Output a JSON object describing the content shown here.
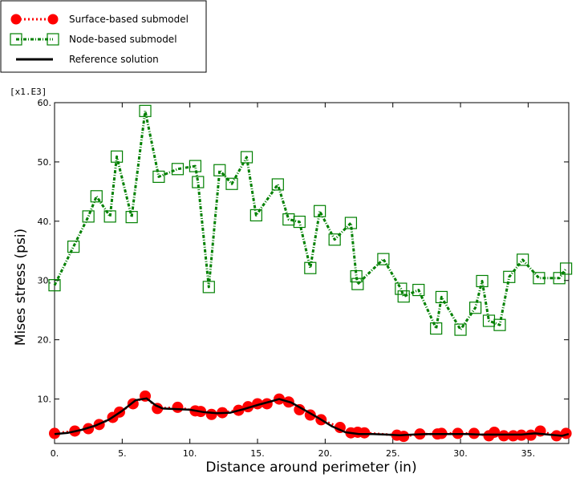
{
  "chart_data": {
    "type": "line",
    "xlabel": "Distance around perimeter (in)",
    "ylabel": "Mises stress (psi)",
    "y_multiplier": "[x1.E3]",
    "xlim": [
      0,
      38
    ],
    "ylim": [
      2.5,
      60
    ],
    "x_ticks": [
      0,
      5,
      10,
      15,
      20,
      25,
      30,
      35
    ],
    "x_tick_labels": [
      "0.",
      "5.",
      "10.",
      "15.",
      "20.",
      "25.",
      "30.",
      "35."
    ],
    "y_ticks": [
      10,
      20,
      30,
      40,
      50,
      60
    ],
    "y_tick_labels": [
      "10.",
      "20.",
      "30.",
      "40.",
      "50.",
      "60."
    ],
    "legend_position": "top-left",
    "grid": false,
    "series": [
      {
        "name": "Surface-based submodel",
        "color": "#ff0000",
        "marker": "circle",
        "line_style": "dotted",
        "x": [
          0.0,
          1.5,
          2.5,
          3.3,
          4.3,
          4.8,
          5.8,
          6.7,
          7.6,
          9.1,
          10.4,
          10.8,
          11.6,
          12.4,
          13.6,
          14.3,
          15.0,
          15.7,
          16.6,
          17.3,
          18.1,
          18.9,
          19.7,
          21.1,
          21.9,
          22.4,
          22.9,
          25.3,
          25.8,
          27.0,
          28.3,
          28.6,
          29.8,
          31.0,
          32.1,
          32.5,
          33.2,
          33.9,
          34.5,
          35.2,
          35.9,
          37.1,
          37.8
        ],
        "y": [
          4.2,
          4.6,
          5.0,
          5.7,
          6.9,
          7.8,
          9.2,
          10.5,
          8.4,
          8.6,
          8.0,
          7.9,
          7.4,
          7.7,
          8.1,
          8.7,
          9.2,
          9.2,
          10.0,
          9.5,
          8.2,
          7.3,
          6.5,
          5.2,
          4.3,
          4.4,
          4.3,
          3.9,
          3.7,
          4.1,
          4.1,
          4.2,
          4.2,
          4.2,
          3.8,
          4.4,
          3.8,
          3.8,
          3.9,
          3.9,
          4.6,
          3.8,
          4.2
        ]
      },
      {
        "name": "Node-based submodel",
        "color": "#008000",
        "marker": "square",
        "line_style": "dash-dot",
        "x": [
          0.0,
          1.4,
          2.5,
          3.1,
          4.1,
          4.6,
          5.7,
          6.7,
          7.7,
          9.1,
          10.4,
          10.6,
          11.4,
          12.2,
          13.1,
          14.2,
          14.9,
          16.5,
          17.3,
          18.1,
          18.9,
          19.6,
          20.7,
          21.9,
          22.3,
          22.4,
          24.3,
          25.6,
          25.8,
          26.9,
          28.2,
          28.6,
          30.0,
          31.1,
          31.6,
          32.1,
          32.9,
          33.6,
          34.6,
          35.8,
          37.3,
          37.8
        ],
        "y": [
          29.2,
          35.7,
          40.8,
          44.2,
          40.8,
          50.9,
          40.7,
          58.6,
          47.5,
          48.8,
          49.3,
          46.6,
          28.9,
          48.6,
          46.3,
          50.8,
          41.0,
          46.2,
          40.3,
          39.9,
          32.1,
          41.7,
          36.9,
          39.7,
          30.7,
          29.4,
          33.6,
          28.6,
          27.3,
          28.4,
          21.9,
          27.2,
          21.7,
          25.4,
          29.9,
          23.2,
          22.5,
          30.6,
          33.5,
          30.4,
          30.4,
          32.0
        ]
      },
      {
        "name": "Reference solution",
        "color": "#000000",
        "marker": "none",
        "line_style": "solid",
        "x": [
          0.0,
          1.0,
          2.0,
          3.0,
          4.0,
          5.0,
          6.0,
          6.8,
          7.5,
          8.0,
          9.0,
          10.0,
          11.0,
          12.0,
          13.0,
          14.0,
          15.0,
          16.0,
          16.6,
          17.5,
          18.5,
          19.5,
          20.5,
          21.5,
          22.5,
          23.5,
          24.5,
          25.5,
          26.5,
          27.5,
          28.5,
          29.5,
          30.5,
          31.5,
          32.5,
          33.5,
          34.5,
          35.5,
          36.5,
          37.5,
          38.0
        ],
        "y": [
          4.1,
          4.3,
          4.8,
          5.5,
          6.5,
          8.0,
          9.8,
          10.1,
          8.9,
          8.4,
          8.3,
          8.2,
          7.8,
          7.6,
          7.7,
          8.3,
          9.0,
          9.6,
          10.0,
          9.4,
          8.1,
          6.8,
          5.4,
          4.4,
          4.1,
          4.1,
          4.0,
          3.9,
          4.0,
          4.1,
          4.1,
          4.1,
          4.1,
          4.0,
          4.0,
          4.0,
          4.0,
          4.2,
          4.0,
          3.8,
          4.1
        ]
      }
    ]
  }
}
